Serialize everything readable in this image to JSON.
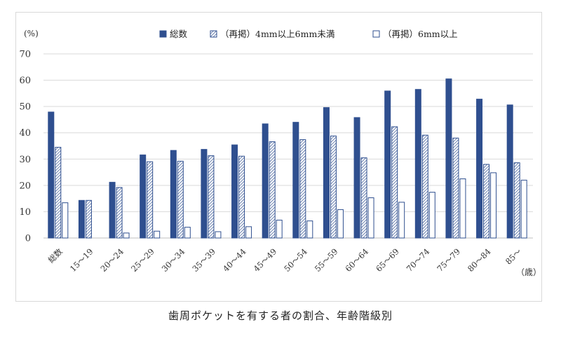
{
  "caption": "歯周ポケットを有する者の割合、年齢階級別",
  "chart_data": {
    "type": "bar",
    "ylabel": "(%)",
    "x_unit": "（歳）",
    "ylim": [
      0,
      70
    ],
    "yticks": [
      0,
      10,
      20,
      30,
      40,
      50,
      60,
      70
    ],
    "grid": true,
    "legend_position": "top",
    "categories": [
      "総数",
      "15～19",
      "20～24",
      "25～29",
      "30～34",
      "35～39",
      "40～44",
      "45～49",
      "50～54",
      "55～59",
      "60～64",
      "65～69",
      "70～74",
      "75～79",
      "80～84",
      "85～"
    ],
    "series": [
      {
        "name": "総数",
        "style": "solid",
        "color": "#2f4f8f",
        "values": [
          47.9,
          14.3,
          21.2,
          31.6,
          33.3,
          33.7,
          35.4,
          43.4,
          44.0,
          49.6,
          45.8,
          55.9,
          56.5,
          60.5,
          52.8,
          50.6
        ]
      },
      {
        "name": "（再掲）4mm以上6mm未満",
        "style": "hatched",
        "color": "#2f4f8f",
        "values": [
          34.5,
          14.3,
          19.2,
          29.0,
          29.2,
          31.3,
          31.1,
          36.6,
          37.4,
          38.8,
          30.5,
          42.3,
          39.1,
          38.0,
          28.0,
          28.6
        ]
      },
      {
        "name": "（再掲）6mm以上",
        "style": "outline",
        "color": "#2f4f8f",
        "values": [
          13.4,
          0,
          1.9,
          2.6,
          4.1,
          2.4,
          4.3,
          6.8,
          6.5,
          10.8,
          15.3,
          13.6,
          17.4,
          22.5,
          24.8,
          22.0
        ]
      }
    ]
  }
}
